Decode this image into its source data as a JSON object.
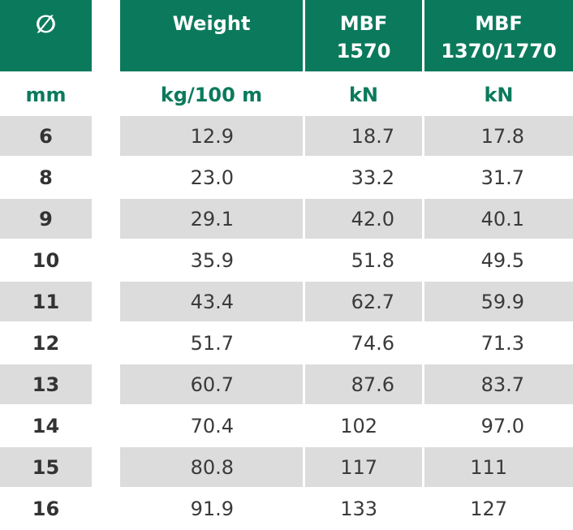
{
  "table": {
    "header": [
      "∅",
      "Weight",
      "MBF\n1570",
      "MBF\n1370/1770"
    ],
    "units": [
      "mm",
      "kg/100 m",
      "kN",
      "kN"
    ],
    "rows": [
      [
        "6",
        "12.9",
        "18.7",
        "17.8"
      ],
      [
        "8",
        "23.0",
        "33.2",
        "31.7"
      ],
      [
        "9",
        "29.1",
        "42.0",
        "40.1"
      ],
      [
        "10",
        "35.9",
        "51.8",
        "49.5"
      ],
      [
        "11",
        "43.4",
        "62.7",
        "59.9"
      ],
      [
        "12",
        "51.7",
        "74.6",
        "71.3"
      ],
      [
        "13",
        "60.7",
        "87.6",
        "83.7"
      ],
      [
        "14",
        "70.4",
        "102",
        "97.0"
      ],
      [
        "15",
        "80.8",
        "117",
        "111"
      ],
      [
        "16",
        "91.9",
        "133",
        "127"
      ]
    ]
  }
}
